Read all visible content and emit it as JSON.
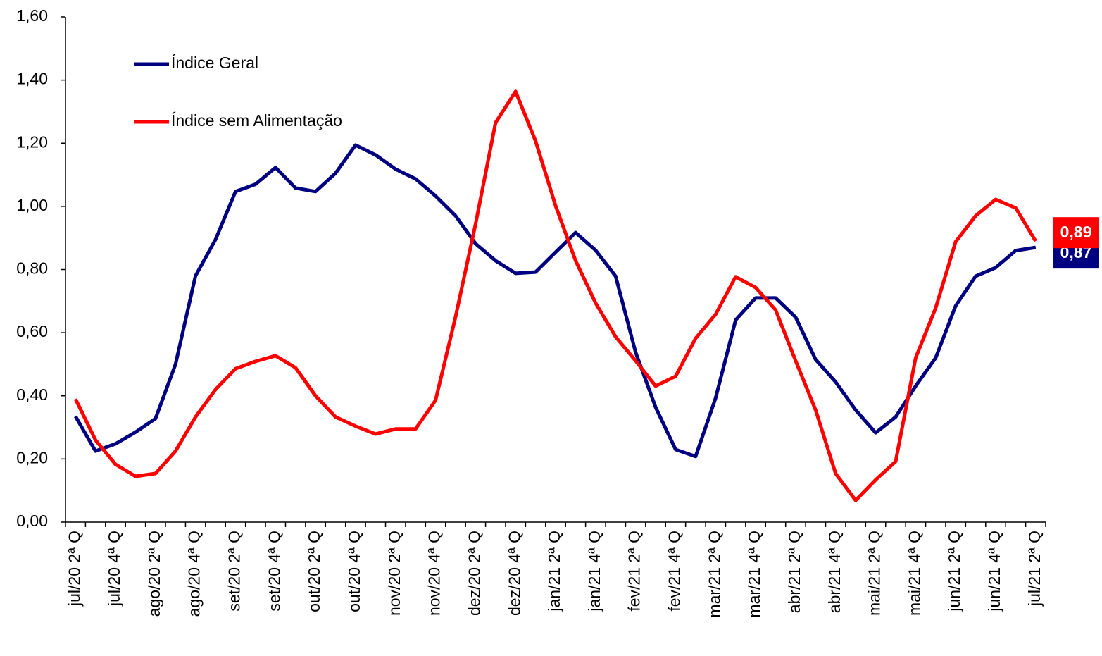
{
  "chart_data": {
    "type": "line",
    "categories": [
      "jul/20 2ª Q",
      null,
      "jul/20 4ª Q",
      null,
      "ago/20 2ª Q",
      null,
      "ago/20 4ª Q",
      null,
      "set/20 2ª Q",
      null,
      "set/20 4ª Q",
      null,
      "out/20 2ª Q",
      null,
      "out/20 4ª Q",
      null,
      "nov/20 2ª Q",
      null,
      "nov/20 4ª Q",
      null,
      "dez/20 2ª Q",
      null,
      "dez/20 4ª Q",
      null,
      "jan/21 2ª Q",
      null,
      "jan/21 4ª Q",
      null,
      "fev/21 2ª Q",
      null,
      "fev/21 4ª Q",
      null,
      "mar/21 2ª Q",
      null,
      "mar/21 4ª Q",
      null,
      "abr/21 2ª Q",
      null,
      "abr/21 4ª Q",
      null,
      "mai/21 2ª Q",
      null,
      "mai/21 4ª Q",
      null,
      "jun/21 2ª Q",
      null,
      "jun/21 4ª Q",
      null,
      "jul/21 2ª Q"
    ],
    "series": [
      {
        "name": "Índice Geral",
        "color": "#000080",
        "values": [
          0.335,
          0.225,
          0.248,
          0.285,
          0.328,
          0.5,
          0.78,
          0.895,
          1.047,
          1.07,
          1.123,
          1.058,
          1.047,
          1.105,
          1.194,
          1.163,
          1.118,
          1.087,
          1.033,
          0.97,
          0.882,
          0.828,
          0.788,
          0.792,
          0.855,
          0.917,
          0.861,
          0.779,
          0.538,
          0.364,
          0.23,
          0.208,
          0.393,
          0.64,
          0.71,
          0.71,
          0.649,
          0.515,
          0.444,
          0.355,
          0.283,
          0.333,
          0.431,
          0.52,
          0.685,
          0.779,
          0.806,
          0.86,
          0.87
        ],
        "value_labels": [
          null,
          null,
          null,
          null,
          null,
          null,
          null,
          null,
          null,
          null,
          null,
          null,
          null,
          null,
          null,
          null,
          null,
          null,
          null,
          null,
          null,
          null,
          null,
          null,
          null,
          null,
          null,
          null,
          null,
          null,
          null,
          null,
          null,
          null,
          null,
          null,
          null,
          null,
          null,
          null,
          null,
          null,
          null,
          null,
          null,
          null,
          null,
          null,
          "0,87"
        ]
      },
      {
        "name": "Índice sem Alimentação",
        "color": "#ff0000",
        "values": [
          0.39,
          0.26,
          0.183,
          0.145,
          0.154,
          0.225,
          0.333,
          0.42,
          0.486,
          0.509,
          0.527,
          0.489,
          0.4,
          0.333,
          0.304,
          0.279,
          0.295,
          0.295,
          0.386,
          0.65,
          0.944,
          1.265,
          1.364,
          1.207,
          1.002,
          0.828,
          0.694,
          0.587,
          0.511,
          0.431,
          0.462,
          0.582,
          0.658,
          0.777,
          0.743,
          0.672,
          0.511,
          0.355,
          0.154,
          0.069,
          0.134,
          0.192,
          0.52,
          0.678,
          0.888,
          0.97,
          1.022,
          0.995,
          0.89
        ],
        "value_labels": [
          null,
          null,
          null,
          null,
          null,
          null,
          null,
          null,
          null,
          null,
          null,
          null,
          null,
          null,
          null,
          null,
          null,
          null,
          null,
          null,
          null,
          null,
          null,
          null,
          null,
          null,
          null,
          null,
          null,
          null,
          null,
          null,
          null,
          null,
          null,
          null,
          null,
          null,
          null,
          null,
          null,
          null,
          null,
          null,
          null,
          null,
          null,
          null,
          "0,89"
        ]
      }
    ],
    "ylim": [
      0,
      1.6
    ],
    "yticks": [
      {
        "value": 0,
        "label": "0,00"
      },
      {
        "value": 0.2,
        "label": "0,20"
      },
      {
        "value": 0.4,
        "label": "0,40"
      },
      {
        "value": 0.6,
        "label": "0,60"
      },
      {
        "value": 0.8,
        "label": "0,80"
      },
      {
        "value": 1.0,
        "label": "1,00"
      },
      {
        "value": 1.2,
        "label": "1,20"
      },
      {
        "value": 1.4,
        "label": "1,40"
      },
      {
        "value": 1.6,
        "label": "1,60"
      }
    ],
    "grid": false
  }
}
